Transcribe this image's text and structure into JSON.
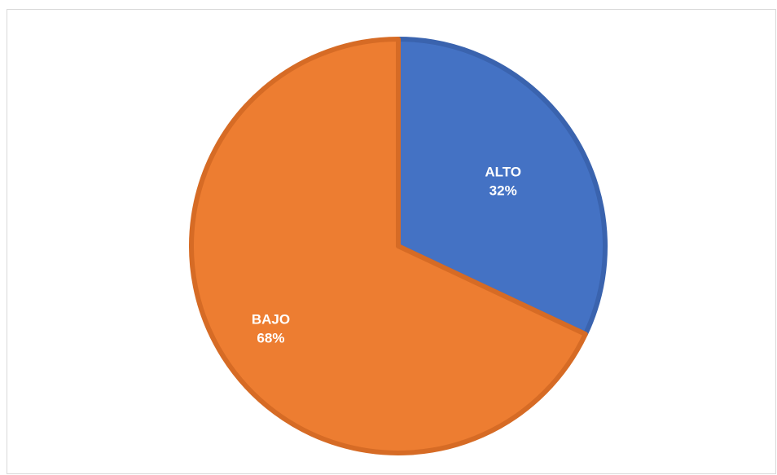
{
  "chart_data": {
    "type": "pie",
    "slices": [
      {
        "label": "ALTO",
        "value": 32,
        "percent_label": "32%",
        "color": "#4472C4",
        "border_color": "#3A63AE"
      },
      {
        "label": "BAJO",
        "value": 68,
        "percent_label": "68%",
        "color": "#ED7D31",
        "border_color": "#D66B25"
      }
    ],
    "start_angle_deg": 0,
    "direction": "clockwise",
    "data_labels": "inside",
    "legend": "none"
  }
}
